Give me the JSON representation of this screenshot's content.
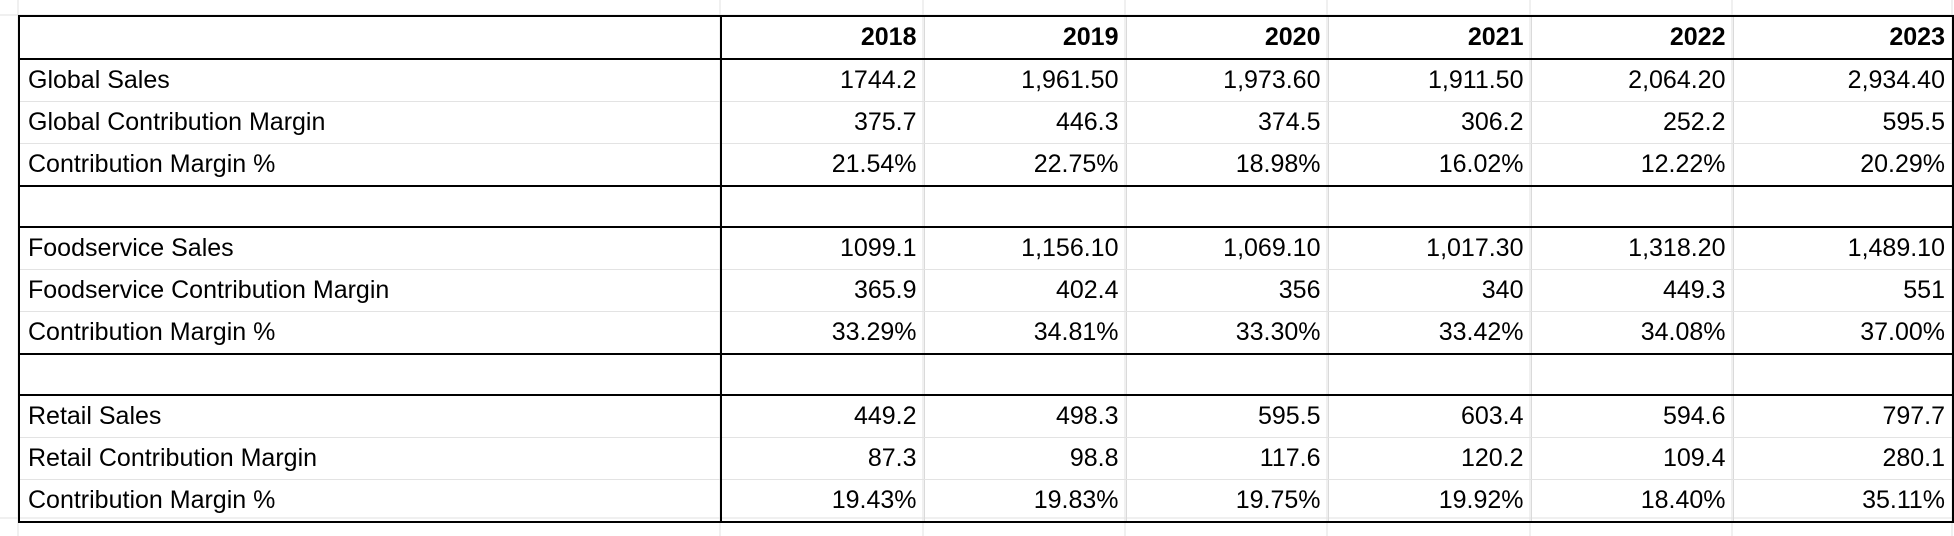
{
  "sheet": {
    "header": {
      "corner": "",
      "years": [
        "2018",
        "2019",
        "2020",
        "2021",
        "2022",
        "2023"
      ]
    },
    "rows": [
      {
        "label": "Global Sales",
        "values": [
          "1744.2",
          "1,961.50",
          "1,973.60",
          "1,911.50",
          "2,064.20",
          "2,934.40"
        ]
      },
      {
        "label": "Global Contribution Margin",
        "values": [
          "375.7",
          "446.3",
          "374.5",
          "306.2",
          "252.2",
          "595.5"
        ]
      },
      {
        "label": "Contribution Margin %",
        "values": [
          "21.54%",
          "22.75%",
          "18.98%",
          "16.02%",
          "12.22%",
          "20.29%"
        ]
      },
      {
        "label": "",
        "values": [
          "",
          "",
          "",
          "",
          "",
          ""
        ]
      },
      {
        "label": "Foodservice Sales",
        "values": [
          "1099.1",
          "1,156.10",
          "1,069.10",
          "1,017.30",
          "1,318.20",
          "1,489.10"
        ]
      },
      {
        "label": "Foodservice Contribution Margin",
        "values": [
          "365.9",
          "402.4",
          "356",
          "340",
          "449.3",
          "551"
        ]
      },
      {
        "label": "Contribution Margin %",
        "values": [
          "33.29%",
          "34.81%",
          "33.30%",
          "33.42%",
          "34.08%",
          "37.00%"
        ]
      },
      {
        "label": "",
        "values": [
          "",
          "",
          "",
          "",
          "",
          ""
        ]
      },
      {
        "label": "Retail Sales",
        "values": [
          "449.2",
          "498.3",
          "595.5",
          "603.4",
          "594.6",
          "797.7"
        ]
      },
      {
        "label": "Retail Contribution Margin",
        "values": [
          "87.3",
          "98.8",
          "117.6",
          "120.2",
          "109.4",
          "280.1"
        ]
      },
      {
        "label": "Contribution Margin %",
        "values": [
          "19.43%",
          "19.83%",
          "19.75%",
          "19.92%",
          "18.40%",
          "35.11%"
        ]
      }
    ]
  }
}
